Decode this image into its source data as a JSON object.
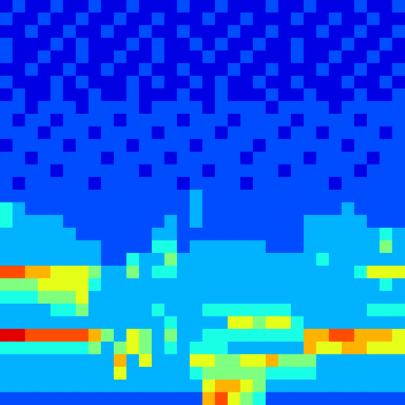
{
  "chart_data": {
    "type": "heatmap",
    "tick_labels": false,
    "color_range": [
      0,
      10
    ],
    "cells": [
      [
        1,
        2,
        1,
        1,
        2,
        1,
        1,
        2,
        1,
        1,
        2,
        1,
        1,
        1,
        2,
        1,
        1,
        2,
        1,
        1,
        1,
        2,
        1,
        1,
        2,
        1,
        1,
        1,
        2,
        1,
        1,
        2
      ],
      [
        2,
        1,
        1,
        2,
        1,
        1,
        2,
        1,
        1,
        2,
        1,
        1,
        2,
        1,
        1,
        1,
        2,
        1,
        1,
        2,
        1,
        1,
        1,
        2,
        1,
        1,
        2,
        1,
        1,
        2,
        1,
        1
      ],
      [
        1,
        1,
        2,
        1,
        1,
        2,
        1,
        1,
        2,
        1,
        1,
        2,
        1,
        1,
        2,
        1,
        1,
        1,
        2,
        1,
        1,
        2,
        1,
        1,
        1,
        2,
        1,
        1,
        2,
        1,
        1,
        2
      ],
      [
        2,
        1,
        1,
        1,
        2,
        1,
        2,
        1,
        1,
        1,
        2,
        1,
        2,
        1,
        1,
        2,
        1,
        2,
        1,
        1,
        2,
        1,
        1,
        2,
        1,
        1,
        1,
        2,
        1,
        1,
        2,
        1
      ],
      [
        2,
        1,
        1,
        2,
        1,
        1,
        2,
        1,
        1,
        2,
        1,
        1,
        2,
        1,
        1,
        1,
        2,
        1,
        1,
        2,
        1,
        1,
        1,
        2,
        1,
        1,
        2,
        1,
        1,
        2,
        1,
        1
      ],
      [
        1,
        1,
        2,
        1,
        1,
        2,
        1,
        1,
        2,
        1,
        1,
        2,
        1,
        1,
        2,
        1,
        1,
        1,
        2,
        1,
        1,
        2,
        1,
        1,
        1,
        2,
        1,
        1,
        2,
        1,
        1,
        2
      ],
      [
        2,
        1,
        1,
        1,
        2,
        1,
        2,
        1,
        1,
        1,
        2,
        1,
        2,
        1,
        1,
        2,
        1,
        2,
        1,
        1,
        2,
        1,
        1,
        2,
        1,
        1,
        1,
        2,
        1,
        1,
        2,
        1
      ],
      [
        1,
        2,
        1,
        1,
        2,
        1,
        1,
        2,
        1,
        1,
        2,
        1,
        1,
        1,
        2,
        1,
        1,
        2,
        1,
        1,
        1,
        2,
        1,
        1,
        2,
        1,
        1,
        1,
        2,
        1,
        1,
        2
      ],
      [
        2,
        2,
        1,
        2,
        2,
        2,
        1,
        2,
        2,
        2,
        2,
        1,
        2,
        2,
        2,
        2,
        1,
        2,
        2,
        2,
        2,
        1,
        2,
        2,
        2,
        2,
        1,
        2,
        2,
        2,
        2,
        2
      ],
      [
        2,
        1,
        2,
        2,
        1,
        2,
        2,
        2,
        2,
        1,
        2,
        2,
        2,
        2,
        1,
        2,
        2,
        2,
        1,
        2,
        2,
        2,
        2,
        1,
        2,
        2,
        2,
        2,
        1,
        2,
        2,
        2
      ],
      [
        2,
        2,
        2,
        1,
        2,
        2,
        2,
        1,
        2,
        2,
        2,
        2,
        1,
        2,
        2,
        2,
        2,
        1,
        2,
        2,
        2,
        2,
        1,
        2,
        2,
        1,
        2,
        2,
        2,
        2,
        1,
        2
      ],
      [
        1,
        2,
        2,
        2,
        2,
        1,
        2,
        2,
        2,
        2,
        1,
        2,
        2,
        2,
        2,
        1,
        2,
        2,
        2,
        2,
        1,
        2,
        2,
        2,
        2,
        2,
        2,
        1,
        2,
        2,
        2,
        2
      ],
      [
        2,
        2,
        1,
        2,
        2,
        2,
        2,
        2,
        1,
        2,
        2,
        2,
        2,
        1,
        2,
        2,
        2,
        2,
        2,
        1,
        2,
        2,
        2,
        2,
        1,
        2,
        2,
        2,
        2,
        1,
        2,
        2
      ],
      [
        2,
        2,
        2,
        2,
        1,
        2,
        2,
        2,
        2,
        2,
        2,
        1,
        2,
        2,
        2,
        2,
        1,
        2,
        2,
        2,
        2,
        2,
        1,
        2,
        2,
        2,
        2,
        2,
        1,
        2,
        2,
        2
      ],
      [
        2,
        1,
        2,
        2,
        2,
        2,
        2,
        1,
        2,
        2,
        2,
        2,
        2,
        2,
        1,
        2,
        2,
        2,
        2,
        1,
        2,
        2,
        2,
        2,
        2,
        2,
        1,
        2,
        2,
        2,
        2,
        2
      ],
      [
        2,
        2,
        2,
        2,
        2,
        2,
        2,
        2,
        2,
        2,
        2,
        2,
        2,
        2,
        2,
        3,
        2,
        2,
        2,
        2,
        2,
        2,
        2,
        2,
        2,
        2,
        2,
        2,
        2,
        2,
        2,
        2
      ],
      [
        4,
        3,
        2,
        2,
        2,
        2,
        2,
        2,
        2,
        2,
        2,
        2,
        2,
        2,
        2,
        3,
        2,
        2,
        2,
        2,
        2,
        2,
        2,
        2,
        2,
        2,
        2,
        3,
        2,
        2,
        2,
        2
      ],
      [
        4,
        3,
        3,
        3,
        3,
        2,
        2,
        2,
        2,
        2,
        2,
        2,
        2,
        3,
        2,
        3,
        2,
        2,
        2,
        2,
        2,
        2,
        2,
        2,
        3,
        3,
        3,
        3,
        3,
        2,
        2,
        2
      ],
      [
        3,
        3,
        3,
        3,
        3,
        3,
        2,
        2,
        2,
        2,
        2,
        2,
        3,
        3,
        2,
        2,
        2,
        2,
        2,
        2,
        2,
        2,
        2,
        2,
        3,
        3,
        3,
        3,
        3,
        3,
        4,
        3
      ],
      [
        3,
        3,
        3,
        3,
        3,
        3,
        3,
        3,
        2,
        2,
        2,
        2,
        4,
        4,
        2,
        3,
        3,
        3,
        3,
        3,
        3,
        2,
        2,
        2,
        3,
        3,
        3,
        3,
        3,
        3,
        5,
        3
      ],
      [
        3,
        3,
        3,
        3,
        3,
        3,
        3,
        3,
        2,
        2,
        4,
        3,
        3,
        5,
        3,
        3,
        3,
        3,
        3,
        3,
        3,
        3,
        3,
        3,
        3,
        4,
        3,
        3,
        3,
        3,
        3,
        3
      ],
      [
        8,
        8,
        7,
        7,
        6,
        6,
        6,
        5,
        3,
        3,
        5,
        3,
        4,
        4,
        3,
        3,
        3,
        3,
        3,
        3,
        3,
        3,
        3,
        3,
        3,
        3,
        3,
        3,
        4,
        6,
        6,
        6
      ],
      [
        5,
        5,
        5,
        6,
        6,
        6,
        6,
        4,
        3,
        3,
        3,
        3,
        3,
        3,
        3,
        3,
        3,
        3,
        3,
        3,
        3,
        3,
        3,
        3,
        3,
        3,
        3,
        3,
        3,
        3,
        4,
        3
      ],
      [
        4,
        4,
        4,
        5,
        5,
        5,
        6,
        3,
        3,
        3,
        3,
        3,
        3,
        3,
        3,
        3,
        3,
        3,
        3,
        3,
        3,
        3,
        3,
        3,
        3,
        3,
        3,
        3,
        3,
        3,
        3,
        3
      ],
      [
        3,
        3,
        3,
        3,
        4,
        4,
        5,
        3,
        3,
        3,
        3,
        3,
        4,
        3,
        3,
        3,
        4,
        4,
        4,
        4,
        4,
        4,
        4,
        3,
        3,
        3,
        3,
        3,
        3,
        4,
        4,
        4
      ],
      [
        3,
        3,
        3,
        3,
        3,
        3,
        3,
        3,
        3,
        3,
        3,
        3,
        3,
        4,
        3,
        3,
        3,
        3,
        6,
        6,
        5,
        6,
        6,
        4,
        3,
        3,
        3,
        3,
        3,
        3,
        3,
        3
      ],
      [
        9,
        9,
        8,
        8,
        8,
        8,
        8,
        7,
        5,
        3,
        6,
        5,
        3,
        5,
        3,
        3,
        4,
        4,
        4,
        4,
        4,
        4,
        4,
        4,
        7,
        7,
        8,
        8,
        7,
        7,
        7,
        6
      ],
      [
        4,
        4,
        4,
        4,
        4,
        4,
        4,
        5,
        3,
        5,
        6,
        5,
        3,
        4,
        3,
        4,
        4,
        4,
        3,
        3,
        3,
        3,
        3,
        3,
        7,
        6,
        6,
        7,
        7,
        6,
        6,
        6
      ],
      [
        3,
        3,
        3,
        3,
        3,
        3,
        3,
        3,
        3,
        7,
        3,
        6,
        3,
        3,
        3,
        6,
        6,
        5,
        5,
        6,
        6,
        7,
        5,
        5,
        5,
        3,
        3,
        3,
        3,
        3,
        3,
        3
      ],
      [
        3,
        3,
        3,
        3,
        3,
        3,
        3,
        3,
        3,
        6,
        3,
        3,
        3,
        3,
        3,
        4,
        5,
        5,
        5,
        5,
        5,
        4,
        4,
        4,
        4,
        3,
        3,
        3,
        3,
        3,
        3,
        3
      ],
      [
        3,
        3,
        3,
        3,
        3,
        3,
        3,
        3,
        3,
        3,
        3,
        3,
        3,
        3,
        3,
        3,
        6,
        7,
        7,
        6,
        5,
        3,
        3,
        3,
        3,
        3,
        3,
        3,
        3,
        3,
        3,
        3
      ],
      [
        2,
        2,
        2,
        2,
        2,
        2,
        2,
        2,
        2,
        2,
        2,
        2,
        2,
        2,
        2,
        2,
        7,
        8,
        6,
        5,
        4,
        2,
        2,
        2,
        2,
        2,
        2,
        2,
        2,
        2,
        2,
        2
      ]
    ]
  }
}
